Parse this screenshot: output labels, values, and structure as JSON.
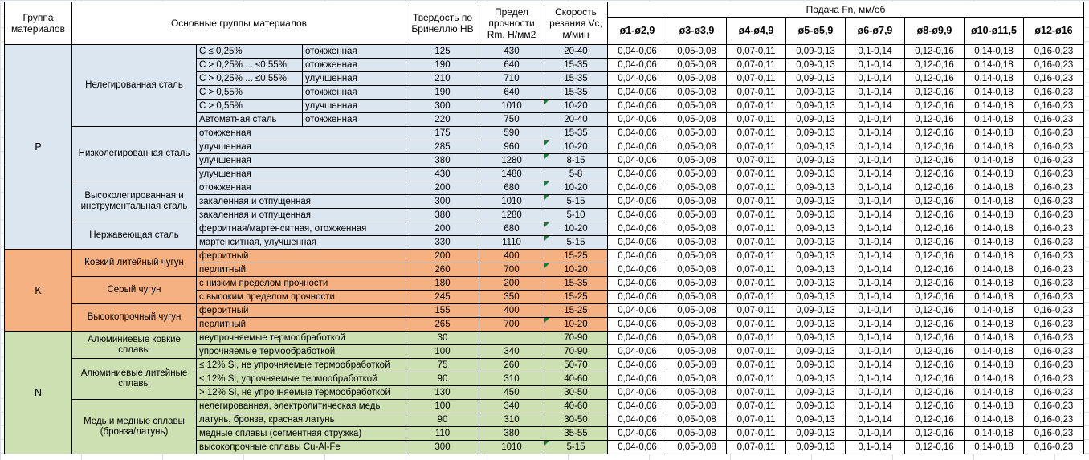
{
  "table": {
    "header": {
      "col_group": "Группа материалов",
      "col_main_groups": "Основные группы материалов",
      "col_hardness": "Твердость по Бринеллю HB",
      "col_strength": "Предел прочности Rm, Н/мм2",
      "col_speed": "Скорость резания Vc, м/мин",
      "feed_title": "Подача Fn, мм/об",
      "feed_cols": [
        "ø1-ø2,9",
        "ø3-ø3,9",
        "ø4-ø4,9",
        "ø5-ø5,9",
        "ø6-ø7,9",
        "ø8-ø9,9",
        "ø10-ø11,5",
        "ø12-ø16"
      ]
    },
    "feed_values": [
      "0,04-0,06",
      "0,05-0,08",
      "0,07-0,11",
      "0,09-0,13",
      "0,1-0,14",
      "0,12-0,16",
      "0,14-0,18",
      "0,16-0,23"
    ],
    "flag_color": "#1d7a38",
    "groups": [
      {
        "code": "P",
        "color": "#DCE6F1",
        "families": [
          {
            "name": "Нелегированная сталь",
            "rows": [
              {
                "c": "C ≤ 0,25%",
                "state": "отожженная",
                "hb": "125",
                "rm": "430",
                "vc": "20-40",
                "flag": false
              },
              {
                "c": "C > 0,25% ... ≤0,55%",
                "state": "отожженная",
                "hb": "190",
                "rm": "640",
                "vc": "15-35",
                "flag": false
              },
              {
                "c": "C > 0,25% ... ≤0,55%",
                "state": "улучшенная",
                "hb": "210",
                "rm": "710",
                "vc": "15-35",
                "flag": false
              },
              {
                "c": "C > 0,55%",
                "state": "отожженная",
                "hb": "190",
                "rm": "640",
                "vc": "15-35",
                "flag": false
              },
              {
                "c": "C > 0,55%",
                "state": "улучшенная",
                "hb": "300",
                "rm": "1010",
                "vc": "10-20",
                "flag": true
              },
              {
                "c": "Автоматная сталь",
                "state": "отожженная",
                "hb": "220",
                "rm": "750",
                "vc": "20-40",
                "flag": false
              }
            ]
          },
          {
            "name": "Низколегированная сталь",
            "rows": [
              {
                "desc": "отожженная",
                "hb": "175",
                "rm": "590",
                "vc": "15-35",
                "flag": false
              },
              {
                "desc": "улучшенная",
                "hb": "285",
                "rm": "960",
                "vc": "10-20",
                "flag": true
              },
              {
                "desc": "улучшенная",
                "hb": "380",
                "rm": "1280",
                "vc": "8-15",
                "flag": true
              },
              {
                "desc": "улучшенная",
                "hb": "430",
                "rm": "1480",
                "vc": "5-8",
                "flag": false
              }
            ]
          },
          {
            "name": "Высоколегированная и инструментальная сталь",
            "rows": [
              {
                "desc": "отожженная",
                "hb": "200",
                "rm": "680",
                "vc": "10-20",
                "flag": true
              },
              {
                "desc": "закаленная и отпущенная",
                "hb": "300",
                "rm": "1010",
                "vc": "5-15",
                "flag": true
              },
              {
                "desc": "закаленная и отпущенная",
                "hb": "380",
                "rm": "1280",
                "vc": "5-10",
                "flag": false
              }
            ]
          },
          {
            "name": "Нержавеющая сталь",
            "rows": [
              {
                "desc": "ферритная/мартенситная, отожженная",
                "hb": "200",
                "rm": "680",
                "vc": "10-20",
                "flag": true
              },
              {
                "desc": "мартенситная, улучшенная",
                "hb": "330",
                "rm": "1110",
                "vc": "5-15",
                "flag": true
              }
            ]
          }
        ]
      },
      {
        "code": "K",
        "color": "#F6B183",
        "families": [
          {
            "name": "Ковкий литейный чугун",
            "rows": [
              {
                "desc": "ферритный",
                "hb": "200",
                "rm": "400",
                "vc": "15-25",
                "flag": false
              },
              {
                "desc": "перлитный",
                "hb": "260",
                "rm": "700",
                "vc": "10-20",
                "flag": true
              }
            ]
          },
          {
            "name": "Серый чугун",
            "rows": [
              {
                "desc": "с низким пределом прочности",
                "hb": "180",
                "rm": "200",
                "vc": "15-35",
                "flag": false
              },
              {
                "desc": "с высоким пределом прочности",
                "hb": "245",
                "rm": "350",
                "vc": "15-25",
                "flag": false
              }
            ]
          },
          {
            "name": "Высокопрочный чугун",
            "rows": [
              {
                "desc": "ферритный",
                "hb": "155",
                "rm": "400",
                "vc": "15-25",
                "flag": false
              },
              {
                "desc": "перлитный",
                "hb": "265",
                "rm": "700",
                "vc": "10-20",
                "flag": true
              }
            ]
          }
        ]
      },
      {
        "code": "N",
        "color": "#CDE0B2",
        "families": [
          {
            "name": "Алюминиевые ковкие сплавы",
            "rows": [
              {
                "desc": "неупрочняемые термообработкой",
                "hb": "30",
                "rm": "",
                "vc": "70-90",
                "flag": false
              },
              {
                "desc": "упрочняемые термообработкой",
                "hb": "100",
                "rm": "340",
                "vc": "70-90",
                "flag": false
              }
            ]
          },
          {
            "name": "Алюминиевые литейные сплавы",
            "rows": [
              {
                "desc": "≤ 12% Si, не упрочняемые термообработкой",
                "hb": "75",
                "rm": "260",
                "vc": "50-70",
                "flag": false
              },
              {
                "desc": "≤ 12% Si, упрочняемые термообработкой",
                "hb": "90",
                "rm": "310",
                "vc": "40-60",
                "flag": false
              },
              {
                "desc": "> 12% Si, не упрочняемые термообработкой",
                "hb": "130",
                "rm": "450",
                "vc": "30-50",
                "flag": false
              }
            ]
          },
          {
            "name": "Медь и медные сплавы (бронза/латунь)",
            "rows": [
              {
                "desc": "нелегированная, электролитическая медь",
                "hb": "100",
                "rm": "340",
                "vc": "40-60",
                "flag": false
              },
              {
                "desc": "латунь, бронза, красная латунь",
                "hb": "90",
                "rm": "310",
                "vc": "30-50",
                "flag": false
              },
              {
                "desc": "медные сплавы (сегментная стружка)",
                "hb": "110",
                "rm": "380",
                "vc": "35-55",
                "flag": false
              },
              {
                "desc": "высокопрочные сплавы Cu-Al-Fe",
                "hb": "300",
                "rm": "1010",
                "vc": "5-15",
                "flag": true
              }
            ]
          }
        ]
      }
    ]
  }
}
